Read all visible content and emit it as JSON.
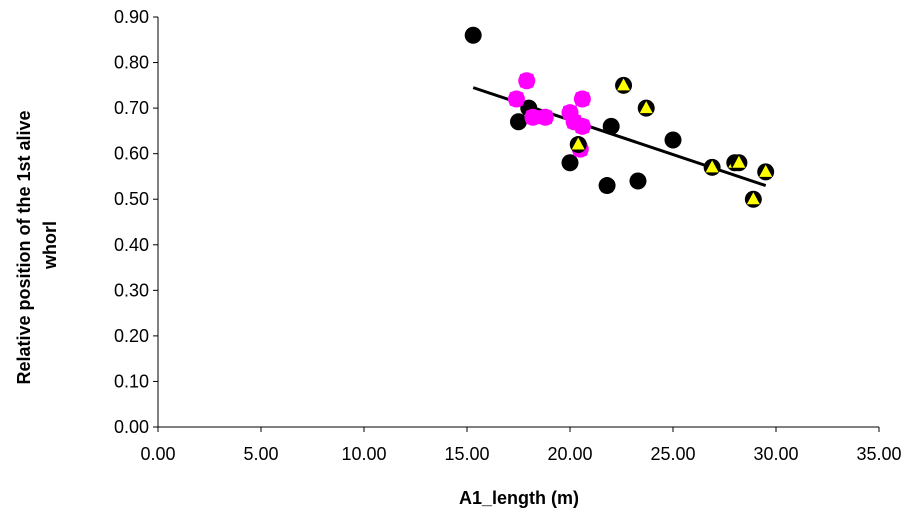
{
  "chart_data": {
    "type": "scatter",
    "title": "",
    "xlabel": "A1_length (m)",
    "ylabel_lines": [
      "Relative position of the 1st alive",
      "whorl"
    ],
    "xlim": [
      0,
      35
    ],
    "ylim": [
      0,
      0.9
    ],
    "x_ticks": [
      "0.00",
      "5.00",
      "10.00",
      "15.00",
      "20.00",
      "25.00",
      "30.00",
      "35.00"
    ],
    "y_ticks": [
      "0.00",
      "0.10",
      "0.20",
      "0.30",
      "0.40",
      "0.50",
      "0.60",
      "0.70",
      "0.80",
      "0.90"
    ],
    "grid": false,
    "legend": "none",
    "series": [
      {
        "marker": "circle",
        "color": "#000000",
        "points": [
          [
            15.3,
            0.86
          ],
          [
            17.5,
            0.67
          ],
          [
            18.0,
            0.7
          ],
          [
            20.0,
            0.58
          ],
          [
            21.8,
            0.53
          ],
          [
            22.0,
            0.66
          ],
          [
            23.3,
            0.54
          ],
          [
            25.0,
            0.63
          ]
        ]
      },
      {
        "marker": "circle-square",
        "color": "#ff00ff",
        "points": [
          [
            17.4,
            0.72
          ],
          [
            17.9,
            0.76
          ],
          [
            18.2,
            0.68
          ],
          [
            18.8,
            0.68
          ],
          [
            20.0,
            0.69
          ],
          [
            20.2,
            0.67
          ],
          [
            20.5,
            0.61
          ],
          [
            20.6,
            0.66
          ],
          [
            20.6,
            0.72
          ]
        ]
      },
      {
        "marker": "circle-triangle",
        "color": "#ffff00",
        "points": [
          [
            20.4,
            0.62
          ],
          [
            22.6,
            0.75
          ],
          [
            23.7,
            0.7
          ],
          [
            26.9,
            0.57
          ],
          [
            28.0,
            0.58
          ],
          [
            28.2,
            0.58
          ],
          [
            28.9,
            0.5
          ],
          [
            29.5,
            0.56
          ]
        ]
      }
    ],
    "trendline": {
      "x": [
        15.3,
        29.5
      ],
      "y": [
        0.745,
        0.53
      ],
      "color": "#000000"
    }
  }
}
